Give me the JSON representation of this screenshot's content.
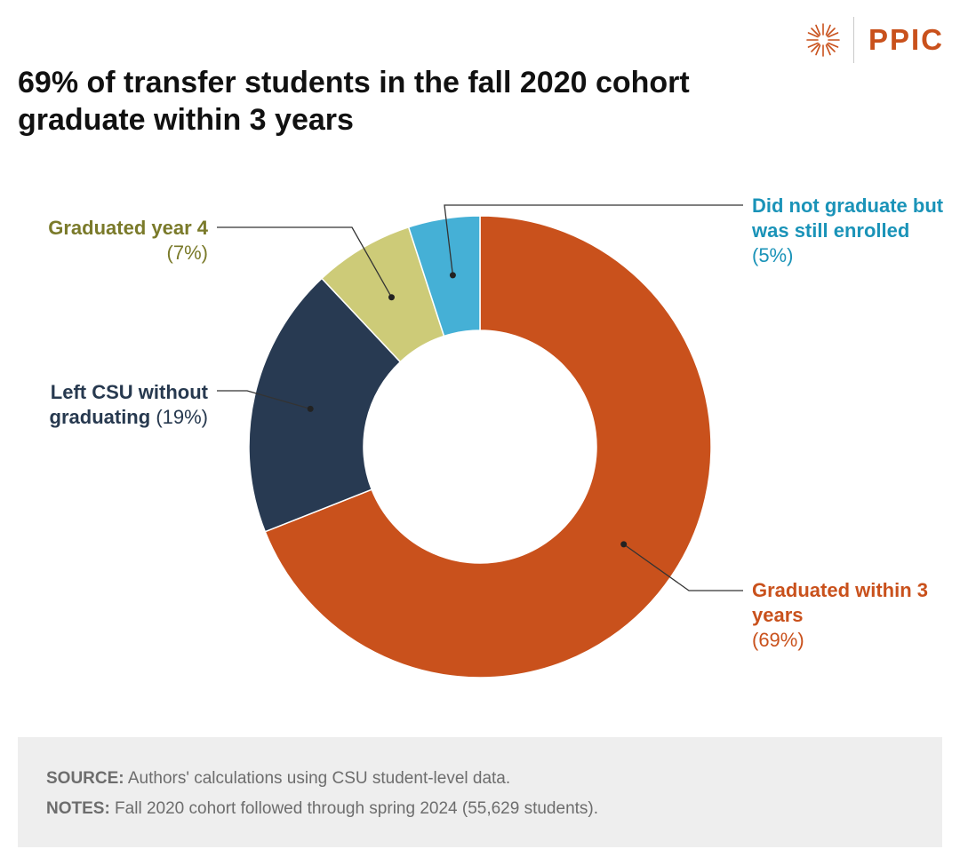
{
  "brand": {
    "logo_text": "PPIC",
    "accent": "#c9511c"
  },
  "title": "69% of transfer students in the fall 2020 cohort graduate within 3 years",
  "chart_data": {
    "type": "pie",
    "donut": true,
    "title": "69% of transfer students in the fall 2020 cohort graduate within 3 years",
    "slices": [
      {
        "name": "Graduated within 3 years",
        "value": 69,
        "color": "#c9511c",
        "pct_label": "(69%)"
      },
      {
        "name": "Left CSU without graduating",
        "value": 19,
        "color": "#283a52",
        "pct_label": "(19%)"
      },
      {
        "name": "Graduated year 4",
        "value": 7,
        "color": "#cdcb78",
        "pct_label": "(7%)"
      },
      {
        "name": "Did not graduate but was still enrolled",
        "value": 5,
        "color": "#45b0d6",
        "pct_label": "(5%)"
      }
    ]
  },
  "labels": {
    "still_enrolled": {
      "name": "Did not graduate but was still enrolled",
      "pct": "(5%)"
    },
    "year4": {
      "name": "Graduated year 4",
      "pct": "(7%)"
    },
    "left": {
      "name": "Left CSU without graduating",
      "pct": "(19%)"
    },
    "grad": {
      "name": "Graduated within 3 years",
      "pct": "(69%)"
    }
  },
  "footer": {
    "source_label": "SOURCE:",
    "source_text": " Authors' calculations using CSU student-level data.",
    "notes_label": "NOTES:",
    "notes_text": " Fall 2020 cohort followed through spring 2024 (55,629 students)."
  }
}
